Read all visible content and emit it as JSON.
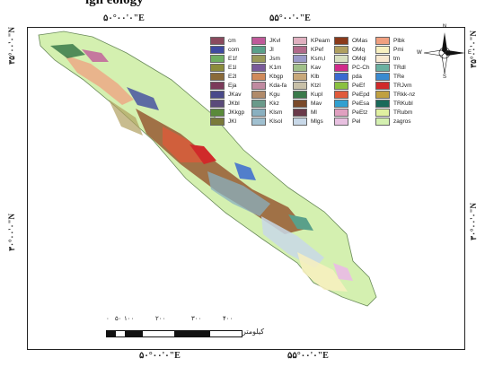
{
  "figure": {
    "caption": "igh          eology"
  },
  "graticule": {
    "top_left": "۵۰°۰۰'۰\"E",
    "top_right": "۵۵°۰۰'۰\"E",
    "bottom_left": "۵۰°۰۰'۰\"E",
    "bottom_right": "۵۵°۰۰'۰\"E",
    "left_upper": "۳۵°۰۰'۰\"N",
    "left_lower": "۳۰°۰۰'۰\"N",
    "right_upper": "۳۵°۰۰'۰\"N",
    "right_lower": "۳۰°۰۰'۰\"N"
  },
  "compass": {
    "n": "N",
    "s": "S",
    "e": "E",
    "w": "W"
  },
  "scale": {
    "ticks": [
      "۰",
      "۵۰",
      "۱۰۰",
      "۲۰۰",
      "۳۰۰",
      "۴۰۰"
    ],
    "unit": "کیلومتر"
  },
  "legend": [
    [
      {
        "label": "cm",
        "color": "#8a4a5e"
      },
      {
        "label": "com",
        "color": "#3f4aa0"
      },
      {
        "label": "E1f",
        "color": "#6fae62"
      },
      {
        "label": "E1l",
        "color": "#8c8c3c"
      },
      {
        "label": "E2l",
        "color": "#8a6a3a"
      },
      {
        "label": "Eja",
        "color": "#7b3a5a"
      },
      {
        "label": "JKav",
        "color": "#4a4a8a"
      },
      {
        "label": "JKbl",
        "color": "#5a4a7a"
      },
      {
        "label": "JKkgp",
        "color": "#5a8a3a"
      },
      {
        "label": "JKl",
        "color": "#7a7a3a"
      }
    ],
    [
      {
        "label": "JKvl",
        "color": "#c05a9a"
      },
      {
        "label": "Jl",
        "color": "#5aa08a"
      },
      {
        "label": "Jsm",
        "color": "#9a9a5a"
      },
      {
        "label": "K1m",
        "color": "#7a5a9a"
      },
      {
        "label": "Kbgp",
        "color": "#d08a5a"
      },
      {
        "label": "Kda-fa",
        "color": "#c08aa0"
      },
      {
        "label": "Kgu",
        "color": "#b08a6a"
      },
      {
        "label": "Kkz",
        "color": "#6a9a8a"
      },
      {
        "label": "Klsm",
        "color": "#8ab0c0"
      },
      {
        "label": "Klsol",
        "color": "#a0c0d0"
      }
    ],
    [
      {
        "label": "KPeam",
        "color": "#e0b0c0"
      },
      {
        "label": "KPef",
        "color": "#b06a8a"
      },
      {
        "label": "Ksm,l",
        "color": "#9a9ac8"
      },
      {
        "label": "Kav",
        "color": "#a0c08a"
      },
      {
        "label": "Klb",
        "color": "#c8a87a"
      },
      {
        "label": "Ktzl",
        "color": "#c8c0a8"
      },
      {
        "label": "Kupl",
        "color": "#3a7a4a"
      },
      {
        "label": "Mav",
        "color": "#7a4a2a"
      },
      {
        "label": "Ml",
        "color": "#6a3a4a"
      },
      {
        "label": "Mlgs",
        "color": "#c8d8e8"
      }
    ],
    [
      {
        "label": "OMas",
        "color": "#8a3a1a"
      },
      {
        "label": "OMq",
        "color": "#b0a060"
      },
      {
        "label": "OMql",
        "color": "#d8e0c0"
      },
      {
        "label": "PC-Ch",
        "color": "#d02a8a"
      },
      {
        "label": "pda",
        "color": "#3a6ad0"
      },
      {
        "label": "PeEf",
        "color": "#8ac040"
      },
      {
        "label": "PeEpd",
        "color": "#e05a3a"
      },
      {
        "label": "PeEsa",
        "color": "#30a0d0"
      },
      {
        "label": "PeEtz",
        "color": "#e0a0c0"
      },
      {
        "label": "Pel",
        "color": "#e8c0e0"
      }
    ],
    [
      {
        "label": "Plbk",
        "color": "#f0a080"
      },
      {
        "label": "Pmi",
        "color": "#f8f0c0"
      },
      {
        "label": "tm",
        "color": "#f8e8d0"
      },
      {
        "label": "TRdl",
        "color": "#6ab0a0"
      },
      {
        "label": "TRe",
        "color": "#3a8ad0"
      },
      {
        "label": "TRJvm",
        "color": "#d02a2a"
      },
      {
        "label": "TRkk-nz",
        "color": "#c0a040"
      },
      {
        "label": "TRKubl",
        "color": "#1a6a5a"
      },
      {
        "label": "TRubm",
        "color": "#e0f0a0"
      },
      {
        "label": "zagros",
        "color": "#d4f0b0"
      }
    ]
  ]
}
